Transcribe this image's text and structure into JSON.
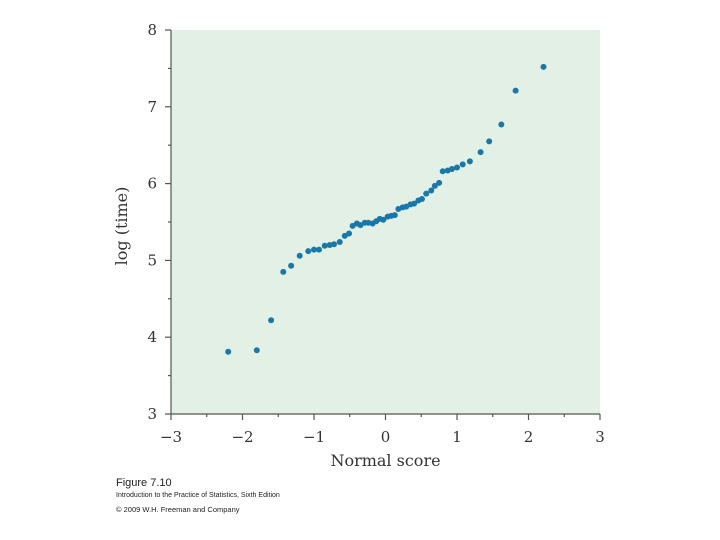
{
  "chart_data": {
    "type": "scatter",
    "title": "",
    "xlabel": "Normal score",
    "ylabel": "log (time)",
    "xlim": [
      -3,
      3
    ],
    "ylim": [
      3,
      8
    ],
    "xticks": [
      "−3",
      "−2",
      "−1",
      "0",
      "1",
      "2",
      "3"
    ],
    "yticks": [
      "3",
      "4",
      "5",
      "6",
      "7",
      "8"
    ],
    "grid": false,
    "background_color": "#e3f0e6",
    "point_color": "#1a78a8",
    "axis_color": "#555555",
    "points": [
      [
        -2.2,
        3.81
      ],
      [
        -1.8,
        3.83
      ],
      [
        -1.6,
        4.22
      ],
      [
        -1.43,
        4.85
      ],
      [
        -1.32,
        4.93
      ],
      [
        -1.2,
        5.06
      ],
      [
        -1.08,
        5.12
      ],
      [
        -1.0,
        5.14
      ],
      [
        -0.93,
        5.14
      ],
      [
        -0.85,
        5.19
      ],
      [
        -0.78,
        5.2
      ],
      [
        -0.72,
        5.21
      ],
      [
        -0.64,
        5.24
      ],
      [
        -0.57,
        5.32
      ],
      [
        -0.51,
        5.35
      ],
      [
        -0.46,
        5.45
      ],
      [
        -0.4,
        5.48
      ],
      [
        -0.35,
        5.46
      ],
      [
        -0.29,
        5.49
      ],
      [
        -0.24,
        5.49
      ],
      [
        -0.18,
        5.48
      ],
      [
        -0.13,
        5.51
      ],
      [
        -0.08,
        5.54
      ],
      [
        -0.03,
        5.53
      ],
      [
        0.03,
        5.57
      ],
      [
        0.08,
        5.58
      ],
      [
        0.13,
        5.59
      ],
      [
        0.18,
        5.67
      ],
      [
        0.24,
        5.69
      ],
      [
        0.29,
        5.7
      ],
      [
        0.35,
        5.73
      ],
      [
        0.4,
        5.74
      ],
      [
        0.46,
        5.78
      ],
      [
        0.51,
        5.8
      ],
      [
        0.57,
        5.87
      ],
      [
        0.64,
        5.91
      ],
      [
        0.69,
        5.97
      ],
      [
        0.75,
        6.01
      ],
      [
        0.8,
        6.16
      ],
      [
        0.87,
        6.17
      ],
      [
        0.93,
        6.19
      ],
      [
        1.0,
        6.21
      ],
      [
        1.08,
        6.25
      ],
      [
        1.18,
        6.29
      ],
      [
        1.33,
        6.41
      ],
      [
        1.45,
        6.55
      ],
      [
        1.62,
        6.77
      ],
      [
        1.82,
        7.21
      ],
      [
        2.21,
        7.52
      ]
    ]
  },
  "captions": {
    "figure": "Figure 7.10",
    "book": "Introduction to the Practice of Statistics, Sixth Edition",
    "copyright": "© 2009 W.H. Freeman and Company"
  }
}
